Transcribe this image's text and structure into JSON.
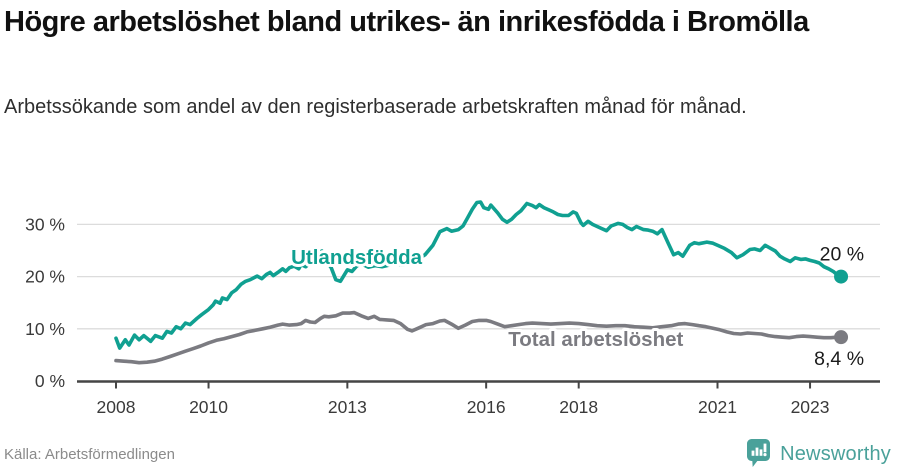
{
  "header": {
    "title": "Högre arbetslöshet bland utrikes- än inrikesfödda i Bromölla",
    "subtitle": "Arbetssökande som andel av den registerbaserade arbetskraften månad för månad."
  },
  "footer": {
    "source": "Källa: Arbetsförmedlingen",
    "brand": "Newsworthy"
  },
  "colors": {
    "foreign_born_line": "#10a091",
    "total_line": "#7b7b81",
    "grid": "#dcdcdc",
    "axis": "#454545",
    "tick_text": "#3a3a3a",
    "end_label_text": "#1b1b1b",
    "logo": "#4aa19a"
  },
  "chart_data": {
    "type": "line",
    "title": "Högre arbetslöshet bland utrikes- än inrikesfödda i Bromölla",
    "xlabel": "",
    "ylabel": "Arbetssökande som andel av den registerbaserade arbetskraften",
    "grid": "horizontal",
    "x_axis": {
      "ticks": [
        2008,
        2010,
        2013,
        2016,
        2018,
        2021,
        2023
      ],
      "range": [
        2007.2,
        2024.5
      ]
    },
    "y_axis": {
      "ticks": [
        0,
        10,
        20,
        30
      ],
      "tick_suffix": " %",
      "range": [
        0,
        36
      ]
    },
    "series": [
      {
        "name": "Total arbetslöshet",
        "color": "#7b7b81",
        "end_label": "8,4 %",
        "end_value": 8.4,
        "label_anchor": {
          "year": 2018.37,
          "value": 8.05
        },
        "points": [
          [
            2008,
            3.9
          ],
          [
            2008.17,
            3.8
          ],
          [
            2008.33,
            3.7
          ],
          [
            2008.5,
            3.5
          ],
          [
            2008.67,
            3.6
          ],
          [
            2008.83,
            3.8
          ],
          [
            2009,
            4.2
          ],
          [
            2009.17,
            4.7
          ],
          [
            2009.33,
            5.2
          ],
          [
            2009.5,
            5.7
          ],
          [
            2009.67,
            6.2
          ],
          [
            2009.83,
            6.7
          ],
          [
            2010,
            7.3
          ],
          [
            2010.17,
            7.8
          ],
          [
            2010.33,
            8.1
          ],
          [
            2010.5,
            8.5
          ],
          [
            2010.67,
            8.9
          ],
          [
            2010.83,
            9.4
          ],
          [
            2011,
            9.7
          ],
          [
            2011.17,
            10.0
          ],
          [
            2011.33,
            10.3
          ],
          [
            2011.5,
            10.7
          ],
          [
            2011.6,
            10.9
          ],
          [
            2011.75,
            10.7
          ],
          [
            2011.9,
            10.8
          ],
          [
            2012,
            11.0
          ],
          [
            2012.1,
            11.6
          ],
          [
            2012.2,
            11.3
          ],
          [
            2012.3,
            11.2
          ],
          [
            2012.42,
            12.0
          ],
          [
            2012.5,
            12.4
          ],
          [
            2012.6,
            12.3
          ],
          [
            2012.75,
            12.5
          ],
          [
            2012.9,
            13.0
          ],
          [
            2013.05,
            13.0
          ],
          [
            2013.15,
            13.1
          ],
          [
            2013.3,
            12.5
          ],
          [
            2013.45,
            12.0
          ],
          [
            2013.58,
            12.4
          ],
          [
            2013.7,
            11.8
          ],
          [
            2013.85,
            11.7
          ],
          [
            2014,
            11.6
          ],
          [
            2014.15,
            11.0
          ],
          [
            2014.3,
            9.9
          ],
          [
            2014.4,
            9.6
          ],
          [
            2014.55,
            10.2
          ],
          [
            2014.7,
            10.8
          ],
          [
            2014.85,
            11.0
          ],
          [
            2015,
            11.5
          ],
          [
            2015.1,
            11.6
          ],
          [
            2015.25,
            10.9
          ],
          [
            2015.4,
            10.1
          ],
          [
            2015.55,
            10.7
          ],
          [
            2015.7,
            11.4
          ],
          [
            2015.85,
            11.6
          ],
          [
            2016,
            11.6
          ],
          [
            2016.1,
            11.4
          ],
          [
            2016.25,
            10.9
          ],
          [
            2016.4,
            10.4
          ],
          [
            2016.55,
            10.6
          ],
          [
            2016.7,
            10.8
          ],
          [
            2016.85,
            11.0
          ],
          [
            2017,
            11.1
          ],
          [
            2017.2,
            11.0
          ],
          [
            2017.4,
            10.9
          ],
          [
            2017.6,
            11.0
          ],
          [
            2017.8,
            11.1
          ],
          [
            2018,
            11.0
          ],
          [
            2018.2,
            10.8
          ],
          [
            2018.4,
            10.6
          ],
          [
            2018.6,
            10.5
          ],
          [
            2018.8,
            10.6
          ],
          [
            2019,
            10.6
          ],
          [
            2019.2,
            10.4
          ],
          [
            2019.4,
            10.3
          ],
          [
            2019.6,
            10.2
          ],
          [
            2019.8,
            10.4
          ],
          [
            2020,
            10.6
          ],
          [
            2020.15,
            10.9
          ],
          [
            2020.3,
            11.0
          ],
          [
            2020.46,
            10.8
          ],
          [
            2020.6,
            10.6
          ],
          [
            2020.75,
            10.4
          ],
          [
            2020.9,
            10.1
          ],
          [
            2021.05,
            9.8
          ],
          [
            2021.2,
            9.4
          ],
          [
            2021.35,
            9.1
          ],
          [
            2021.5,
            9.0
          ],
          [
            2021.65,
            9.2
          ],
          [
            2021.8,
            9.1
          ],
          [
            2021.95,
            9.0
          ],
          [
            2022.1,
            8.7
          ],
          [
            2022.25,
            8.5
          ],
          [
            2022.4,
            8.4
          ],
          [
            2022.55,
            8.3
          ],
          [
            2022.7,
            8.5
          ],
          [
            2022.85,
            8.6
          ],
          [
            2023,
            8.5
          ],
          [
            2023.15,
            8.4
          ],
          [
            2023.3,
            8.3
          ],
          [
            2023.45,
            8.3
          ],
          [
            2023.58,
            8.4
          ],
          [
            2023.67,
            8.4
          ]
        ]
      },
      {
        "name": "Utlandsfödda",
        "color": "#10a091",
        "end_label": "20 %",
        "end_value": 20.0,
        "label_anchor": {
          "year": 2013.2,
          "value": 23.75
        },
        "points": [
          [
            2008,
            8.2
          ],
          [
            2008.08,
            6.3
          ],
          [
            2008.2,
            7.9
          ],
          [
            2008.28,
            6.9
          ],
          [
            2008.4,
            8.8
          ],
          [
            2008.5,
            7.9
          ],
          [
            2008.6,
            8.7
          ],
          [
            2008.75,
            7.6
          ],
          [
            2008.85,
            8.7
          ],
          [
            2009,
            8.2
          ],
          [
            2009.1,
            9.5
          ],
          [
            2009.2,
            9.2
          ],
          [
            2009.3,
            10.4
          ],
          [
            2009.4,
            10.0
          ],
          [
            2009.5,
            11.1
          ],
          [
            2009.6,
            10.8
          ],
          [
            2009.75,
            12.0
          ],
          [
            2009.85,
            12.7
          ],
          [
            2010,
            13.7
          ],
          [
            2010.1,
            14.6
          ],
          [
            2010.15,
            15.3
          ],
          [
            2010.25,
            14.9
          ],
          [
            2010.3,
            15.9
          ],
          [
            2010.4,
            15.6
          ],
          [
            2010.5,
            16.9
          ],
          [
            2010.6,
            17.5
          ],
          [
            2010.7,
            18.5
          ],
          [
            2010.8,
            19.1
          ],
          [
            2010.9,
            19.4
          ],
          [
            2011.05,
            20.1
          ],
          [
            2011.15,
            19.6
          ],
          [
            2011.25,
            20.4
          ],
          [
            2011.33,
            20.8
          ],
          [
            2011.4,
            20.2
          ],
          [
            2011.5,
            20.8
          ],
          [
            2011.6,
            21.5
          ],
          [
            2011.67,
            21.0
          ],
          [
            2011.75,
            21.7
          ],
          [
            2011.85,
            22.0
          ],
          [
            2011.95,
            21.5
          ],
          [
            2012,
            22.3
          ],
          [
            2012.1,
            21.9
          ],
          [
            2012.2,
            22.6
          ],
          [
            2012.33,
            24.2
          ],
          [
            2012.45,
            24.9
          ],
          [
            2012.55,
            22.9
          ],
          [
            2012.65,
            21.7
          ],
          [
            2012.75,
            19.4
          ],
          [
            2012.85,
            19.1
          ],
          [
            2013,
            21.3
          ],
          [
            2013.1,
            21.0
          ],
          [
            2013.2,
            22.0
          ],
          [
            2013.3,
            22.5
          ],
          [
            2013.45,
            21.8
          ],
          [
            2013.6,
            22.1
          ],
          [
            2013.75,
            21.9
          ],
          [
            2013.9,
            22.2
          ],
          [
            2014.05,
            22.5
          ],
          [
            2014.2,
            22.2
          ],
          [
            2014.35,
            22.6
          ],
          [
            2014.5,
            23.2
          ],
          [
            2014.68,
            24.2
          ],
          [
            2014.85,
            26.0
          ],
          [
            2015,
            28.6
          ],
          [
            2015.15,
            29.2
          ],
          [
            2015.25,
            28.7
          ],
          [
            2015.4,
            29.0
          ],
          [
            2015.5,
            29.7
          ],
          [
            2015.6,
            31.3
          ],
          [
            2015.7,
            32.9
          ],
          [
            2015.8,
            34.2
          ],
          [
            2015.88,
            34.3
          ],
          [
            2015.95,
            33.2
          ],
          [
            2016.05,
            32.9
          ],
          [
            2016.1,
            33.7
          ],
          [
            2016.25,
            32.2
          ],
          [
            2016.35,
            31.0
          ],
          [
            2016.45,
            30.4
          ],
          [
            2016.55,
            31.0
          ],
          [
            2016.65,
            31.9
          ],
          [
            2016.75,
            32.6
          ],
          [
            2016.88,
            34.0
          ],
          [
            2017,
            33.6
          ],
          [
            2017.08,
            33.2
          ],
          [
            2017.15,
            33.8
          ],
          [
            2017.25,
            33.2
          ],
          [
            2017.35,
            32.8
          ],
          [
            2017.45,
            32.4
          ],
          [
            2017.55,
            31.9
          ],
          [
            2017.65,
            31.7
          ],
          [
            2017.78,
            31.7
          ],
          [
            2017.88,
            32.4
          ],
          [
            2017.95,
            32.1
          ],
          [
            2018.05,
            30.3
          ],
          [
            2018.1,
            29.8
          ],
          [
            2018.2,
            30.6
          ],
          [
            2018.3,
            30.0
          ],
          [
            2018.4,
            29.6
          ],
          [
            2018.5,
            29.2
          ],
          [
            2018.6,
            28.8
          ],
          [
            2018.7,
            29.7
          ],
          [
            2018.85,
            30.2
          ],
          [
            2018.95,
            30.0
          ],
          [
            2019.05,
            29.4
          ],
          [
            2019.15,
            29.0
          ],
          [
            2019.25,
            29.6
          ],
          [
            2019.4,
            29.0
          ],
          [
            2019.5,
            28.9
          ],
          [
            2019.6,
            28.7
          ],
          [
            2019.7,
            28.2
          ],
          [
            2019.8,
            29.0
          ],
          [
            2019.93,
            26.5
          ],
          [
            2020.05,
            24.2
          ],
          [
            2020.15,
            24.6
          ],
          [
            2020.25,
            23.9
          ],
          [
            2020.4,
            26.0
          ],
          [
            2020.5,
            26.5
          ],
          [
            2020.6,
            26.3
          ],
          [
            2020.77,
            26.6
          ],
          [
            2020.9,
            26.4
          ],
          [
            2021,
            26.0
          ],
          [
            2021.15,
            25.4
          ],
          [
            2021.3,
            24.6
          ],
          [
            2021.42,
            23.6
          ],
          [
            2021.55,
            24.2
          ],
          [
            2021.7,
            25.2
          ],
          [
            2021.8,
            25.3
          ],
          [
            2021.92,
            25.0
          ],
          [
            2022.03,
            26.0
          ],
          [
            2022.15,
            25.4
          ],
          [
            2022.25,
            24.9
          ],
          [
            2022.35,
            23.9
          ],
          [
            2022.45,
            23.4
          ],
          [
            2022.57,
            22.9
          ],
          [
            2022.68,
            23.6
          ],
          [
            2022.8,
            23.3
          ],
          [
            2022.9,
            23.4
          ],
          [
            2023,
            23.1
          ],
          [
            2023.1,
            22.9
          ],
          [
            2023.2,
            22.6
          ],
          [
            2023.3,
            21.9
          ],
          [
            2023.4,
            21.5
          ],
          [
            2023.5,
            21.0
          ],
          [
            2023.58,
            20.4
          ],
          [
            2023.67,
            20.0
          ]
        ]
      }
    ]
  }
}
